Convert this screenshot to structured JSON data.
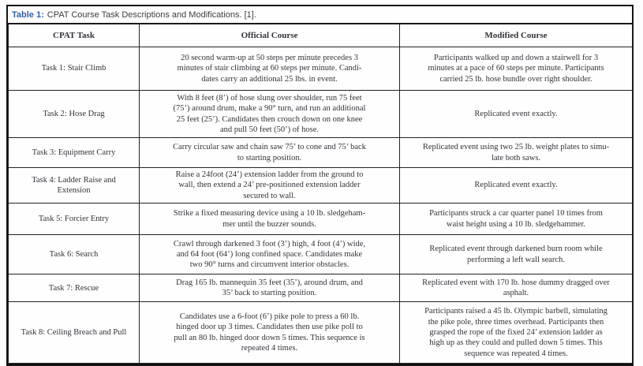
{
  "title": {
    "label": "Table 1:",
    "text": "CPAT Course Task Descriptions and Modifications. [1]."
  },
  "colors": {
    "title_accent": "#3060a8",
    "body_text": "#32323a",
    "border": "#141414",
    "background": "#fffefe"
  },
  "table": {
    "headers": [
      "CPAT Task",
      "Official Course",
      "Modified Course"
    ],
    "rows": [
      {
        "task": "Task 1: Stair Climb",
        "official": "20 second warm-up at 50 steps per minute precedes 3\nminutes of stair climbing at 60 steps per minute. Candi-\ndates carry an additional 25 lbs. in event.",
        "modified": "Participants walked up and down a stairwell for 3\nminutes at a pace of 60 steps per minute. Participants\ncarried 25 lb. hose bundle over right shoulder."
      },
      {
        "task": "Task 2: Hose Drag",
        "official": "With 8 feet (8’) of hose slung over shoulder, run 75 feet\n(75’) around drum, make a 90° turn, and run an additional\n25 feet (25’). Candidates then crouch down on one knee\nand pull 50 feet (50’) of hose.",
        "modified": "Replicated event exactly."
      },
      {
        "task": "Task 3: Equipment Carry",
        "official": "Carry circular saw and chain saw 75’ to cone and 75’ back\nto starting position.",
        "modified": "Replicated event using two 25 lb. weight plates to simu-\nlate both saws."
      },
      {
        "task": "Task 4: Ladder Raise and\nExtension",
        "official": "Raise a 24foot (24’) extension ladder from the ground to\nwall, then extend a 24’ pre-positioned extension ladder\nsecured to wall.",
        "modified": "Replicated event exactly."
      },
      {
        "task": "Task 5: Forcier Entry",
        "official": "Strike a fixed measuring device using a 10 lb. sledgeham-\nmer until the buzzer sounds.",
        "modified": "Participants struck a car quarter panel 10 times from\nwaist height using a 10 lb. sledgehammer."
      },
      {
        "task": "Task 6: Search",
        "official": "Crawl through darkened 3 foot (3’) high, 4 foot (4’) wide,\nand 64 foot (64’) long confined space. Candidates make\ntwo 90° turns and circumvent interior obstacles.",
        "modified": "Replicated event through darkened burn room while\nperforming a left wall search."
      },
      {
        "task": "Task 7: Rescue",
        "official": "Drag 165 lb. mannequin 35 feet (35’), around drum, and\n35’ back to starting position.",
        "modified": "Replicated event with 170 lb. hose dummy dragged over\nasphalt."
      },
      {
        "task": "Task 8: Ceiling Breach and Pull",
        "official": "Candidates use a 6-foot (6’) pike pole to press a 60 lb.\nhinged door up 3 times. Candidates then use pike poll to\npull an 80 lb. hinged door down 5 times. This sequence is\nrepeated 4 times.",
        "modified": "Participants raised a 45 lb. Olympic barbell, simulating\nthe pike pole, three times overhead. Participants then\ngrasped the rope of the fixed 24’ extension ladder as\nhigh up as they could and pulled down 5 times. This\nsequence was repeated 4 times."
      }
    ]
  }
}
